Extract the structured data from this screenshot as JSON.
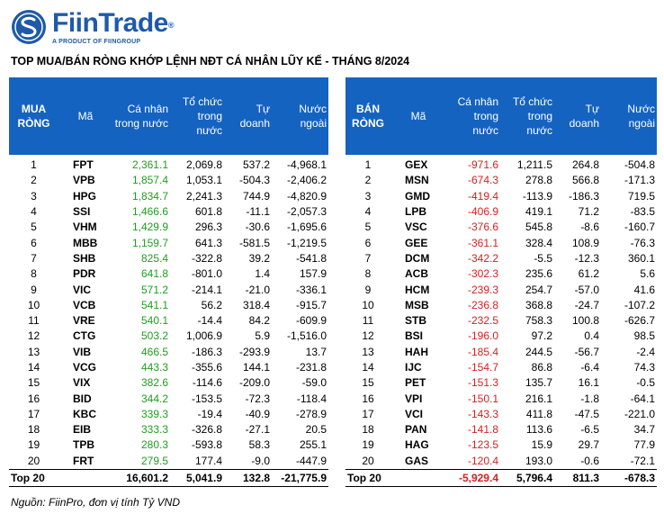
{
  "brand": {
    "name": "FiinTrade",
    "registered": "®",
    "tagline": "A PRODUCT OF FIINGROUP"
  },
  "title": "TOP MUA/BÁN RÒNG KHỚP LỆNH NĐT CÁ NHÂN LŨY KẾ  - THÁNG 8/2024",
  "colors": {
    "header_bg": "#1563c0",
    "positive": "#1e9e1e",
    "negative": "#d42020",
    "brand": "#1e5aa8"
  },
  "buy": {
    "headers": [
      "MUA RÒNG",
      "Mã",
      "Cá nhân trong nước",
      "Tổ chức trong nước",
      "Tự doanh",
      "Nước ngoài"
    ],
    "rows": [
      {
        "rank": "1",
        "code": "FPT",
        "individual": "2,361.1",
        "institution": "2,069.8",
        "proprietary": "537.2",
        "foreign": "-4,968.1"
      },
      {
        "rank": "2",
        "code": "VPB",
        "individual": "1,857.4",
        "institution": "1,053.1",
        "proprietary": "-504.3",
        "foreign": "-2,406.2"
      },
      {
        "rank": "3",
        "code": "HPG",
        "individual": "1,834.7",
        "institution": "2,241.3",
        "proprietary": "744.9",
        "foreign": "-4,820.9"
      },
      {
        "rank": "4",
        "code": "SSI",
        "individual": "1,466.6",
        "institution": "601.8",
        "proprietary": "-11.1",
        "foreign": "-2,057.3"
      },
      {
        "rank": "5",
        "code": "VHM",
        "individual": "1,429.9",
        "institution": "296.3",
        "proprietary": "-30.6",
        "foreign": "-1,695.6"
      },
      {
        "rank": "6",
        "code": "MBB",
        "individual": "1,159.7",
        "institution": "641.3",
        "proprietary": "-581.5",
        "foreign": "-1,219.5"
      },
      {
        "rank": "7",
        "code": "SHB",
        "individual": "825.4",
        "institution": "-322.8",
        "proprietary": "39.2",
        "foreign": "-541.8"
      },
      {
        "rank": "8",
        "code": "PDR",
        "individual": "641.8",
        "institution": "-801.0",
        "proprietary": "1.4",
        "foreign": "157.9"
      },
      {
        "rank": "9",
        "code": "VIC",
        "individual": "571.2",
        "institution": "-214.1",
        "proprietary": "-21.0",
        "foreign": "-336.1"
      },
      {
        "rank": "10",
        "code": "VCB",
        "individual": "541.1",
        "institution": "56.2",
        "proprietary": "318.4",
        "foreign": "-915.7"
      },
      {
        "rank": "11",
        "code": "VRE",
        "individual": "540.1",
        "institution": "-14.4",
        "proprietary": "84.2",
        "foreign": "-609.9"
      },
      {
        "rank": "12",
        "code": "CTG",
        "individual": "503.2",
        "institution": "1,006.9",
        "proprietary": "5.9",
        "foreign": "-1,516.0"
      },
      {
        "rank": "13",
        "code": "VIB",
        "individual": "466.5",
        "institution": "-186.3",
        "proprietary": "-293.9",
        "foreign": "13.7"
      },
      {
        "rank": "14",
        "code": "VCG",
        "individual": "443.3",
        "institution": "-355.6",
        "proprietary": "144.1",
        "foreign": "-231.8"
      },
      {
        "rank": "15",
        "code": "VIX",
        "individual": "382.6",
        "institution": "-114.6",
        "proprietary": "-209.0",
        "foreign": "-59.0"
      },
      {
        "rank": "16",
        "code": "BID",
        "individual": "344.2",
        "institution": "-153.5",
        "proprietary": "-72.3",
        "foreign": "-118.4"
      },
      {
        "rank": "17",
        "code": "KBC",
        "individual": "339.3",
        "institution": "-19.4",
        "proprietary": "-40.9",
        "foreign": "-278.9"
      },
      {
        "rank": "18",
        "code": "EIB",
        "individual": "333.3",
        "institution": "-326.8",
        "proprietary": "-27.1",
        "foreign": "20.5"
      },
      {
        "rank": "19",
        "code": "TPB",
        "individual": "280.3",
        "institution": "-593.8",
        "proprietary": "58.3",
        "foreign": "255.1"
      },
      {
        "rank": "20",
        "code": "FRT",
        "individual": "279.5",
        "institution": "177.4",
        "proprietary": "-9.0",
        "foreign": "-447.9"
      }
    ],
    "total": {
      "label": "Top 20",
      "individual": "16,601.2",
      "institution": "5,041.9",
      "proprietary": "132.8",
      "foreign": "-21,775.9"
    }
  },
  "sell": {
    "headers": [
      "BÁN RÒNG",
      "Mã",
      "Cá nhân trong nước",
      "Tổ chức trong nước",
      "Tự doanh",
      "Nước ngoài"
    ],
    "rows": [
      {
        "rank": "1",
        "code": "GEX",
        "individual": "-971.6",
        "institution": "1,211.5",
        "proprietary": "264.8",
        "foreign": "-504.8"
      },
      {
        "rank": "2",
        "code": "MSN",
        "individual": "-674.3",
        "institution": "278.8",
        "proprietary": "566.8",
        "foreign": "-171.3"
      },
      {
        "rank": "3",
        "code": "GMD",
        "individual": "-419.4",
        "institution": "-113.9",
        "proprietary": "-186.3",
        "foreign": "719.5"
      },
      {
        "rank": "4",
        "code": "LPB",
        "individual": "-406.9",
        "institution": "419.1",
        "proprietary": "71.2",
        "foreign": "-83.5"
      },
      {
        "rank": "5",
        "code": "VSC",
        "individual": "-376.6",
        "institution": "545.8",
        "proprietary": "-8.6",
        "foreign": "-160.7"
      },
      {
        "rank": "6",
        "code": "GEE",
        "individual": "-361.1",
        "institution": "328.4",
        "proprietary": "108.9",
        "foreign": "-76.3"
      },
      {
        "rank": "7",
        "code": "DCM",
        "individual": "-342.2",
        "institution": "-5.5",
        "proprietary": "-12.3",
        "foreign": "360.1"
      },
      {
        "rank": "8",
        "code": "ACB",
        "individual": "-302.3",
        "institution": "235.6",
        "proprietary": "61.2",
        "foreign": "5.6"
      },
      {
        "rank": "9",
        "code": "HCM",
        "individual": "-239.3",
        "institution": "254.7",
        "proprietary": "-57.0",
        "foreign": "41.6"
      },
      {
        "rank": "10",
        "code": "MSB",
        "individual": "-236.8",
        "institution": "368.8",
        "proprietary": "-24.7",
        "foreign": "-107.2"
      },
      {
        "rank": "11",
        "code": "STB",
        "individual": "-232.5",
        "institution": "758.3",
        "proprietary": "100.8",
        "foreign": "-626.7"
      },
      {
        "rank": "12",
        "code": "BSI",
        "individual": "-196.0",
        "institution": "97.2",
        "proprietary": "0.4",
        "foreign": "98.5"
      },
      {
        "rank": "13",
        "code": "HAH",
        "individual": "-185.4",
        "institution": "244.5",
        "proprietary": "-56.7",
        "foreign": "-2.4"
      },
      {
        "rank": "14",
        "code": "IJC",
        "individual": "-154.7",
        "institution": "86.8",
        "proprietary": "-6.4",
        "foreign": "74.3"
      },
      {
        "rank": "15",
        "code": "PET",
        "individual": "-151.3",
        "institution": "135.7",
        "proprietary": "16.1",
        "foreign": "-0.5"
      },
      {
        "rank": "16",
        "code": "VPI",
        "individual": "-150.1",
        "institution": "216.1",
        "proprietary": "-1.8",
        "foreign": "-64.1"
      },
      {
        "rank": "17",
        "code": "VCI",
        "individual": "-143.3",
        "institution": "411.8",
        "proprietary": "-47.5",
        "foreign": "-221.0"
      },
      {
        "rank": "18",
        "code": "PAN",
        "individual": "-141.8",
        "institution": "113.6",
        "proprietary": "-6.5",
        "foreign": "34.7"
      },
      {
        "rank": "19",
        "code": "HAG",
        "individual": "-123.5",
        "institution": "15.9",
        "proprietary": "29.7",
        "foreign": "77.9"
      },
      {
        "rank": "20",
        "code": "GAS",
        "individual": "-120.4",
        "institution": "193.0",
        "proprietary": "-0.6",
        "foreign": "-72.1"
      }
    ],
    "total": {
      "label": "Top 20",
      "individual": "-5,929.4",
      "institution": "5,796.4",
      "proprietary": "811.3",
      "foreign": "-678.3"
    }
  },
  "source": "Nguồn: FiinPro, đơn vị tính Tỷ VND"
}
